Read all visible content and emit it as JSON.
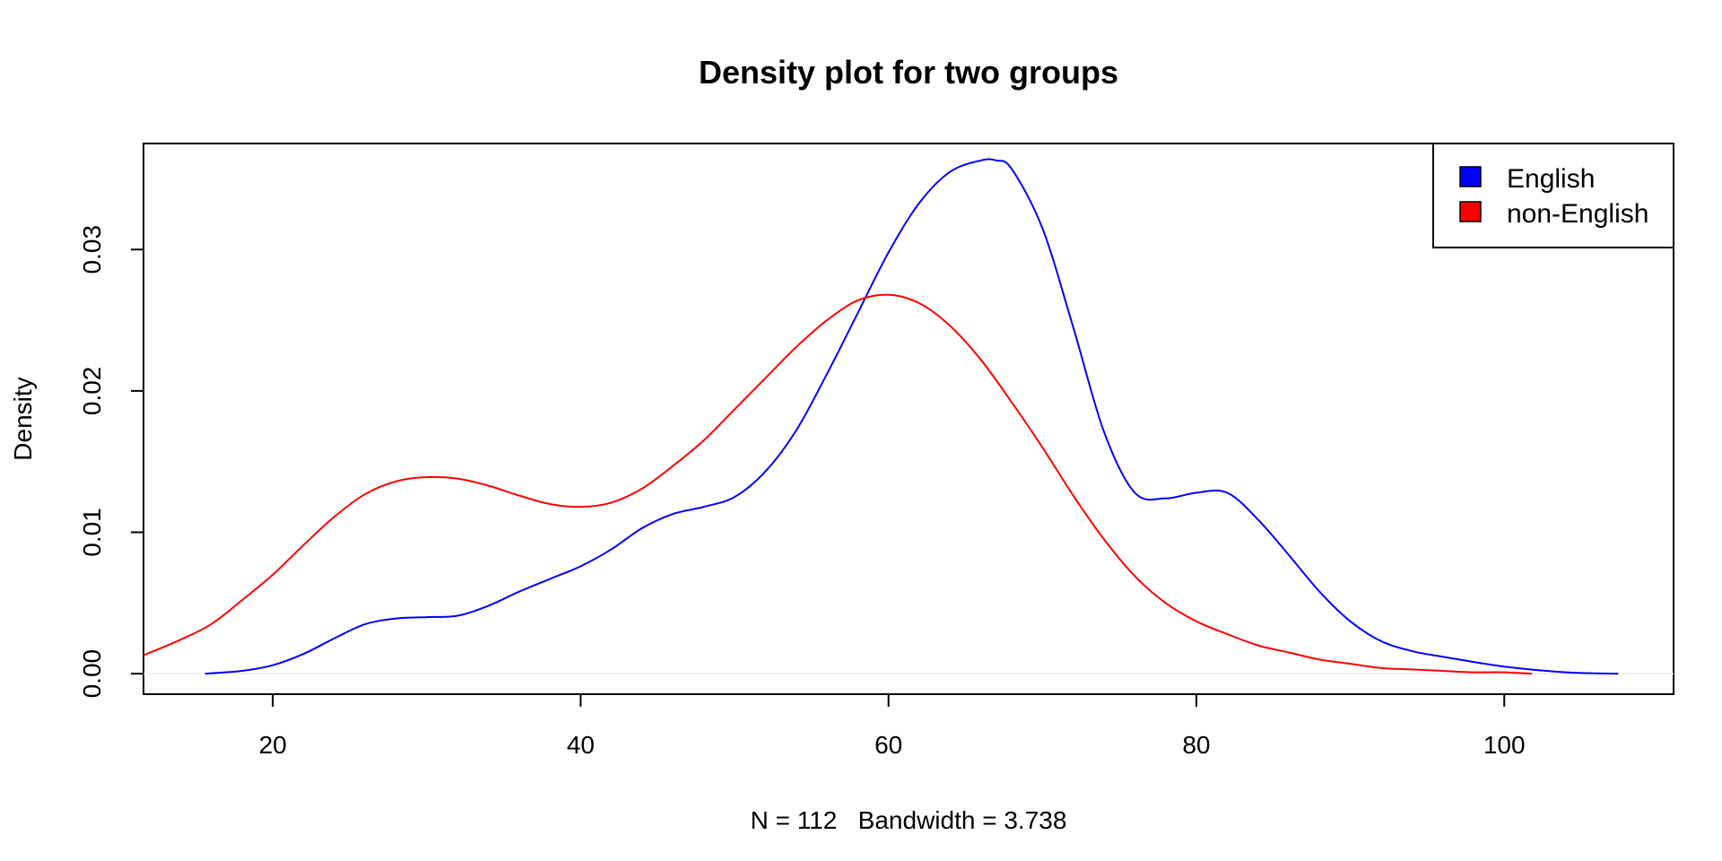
{
  "chart_data": {
    "type": "line",
    "title": "Density plot for two groups",
    "xlabel": "N = 112   Bandwidth = 3.738",
    "ylabel": "Density",
    "xlim": [
      11.6,
      111
    ],
    "ylim": [
      -0.00145,
      0.0375
    ],
    "xticks": [
      20,
      40,
      60,
      80,
      100
    ],
    "yticks": [
      0.0,
      0.01,
      0.02,
      0.03
    ],
    "xtick_labels": [
      "20",
      "40",
      "60",
      "80",
      "100"
    ],
    "ytick_labels": [
      "0.00",
      "0.01",
      "0.02",
      "0.03"
    ],
    "grid": false,
    "legend_position": "top-right",
    "baseline": 0,
    "series": [
      {
        "name": "English",
        "color": "#0000ff",
        "x": [
          15.6,
          18,
          20,
          22,
          24,
          26,
          28,
          30,
          32,
          34,
          36,
          38,
          40,
          42,
          44,
          46,
          48,
          50,
          52,
          54,
          56,
          58,
          60,
          62,
          64,
          66,
          67,
          68,
          70,
          72,
          74,
          76,
          78,
          80,
          82,
          84,
          86,
          88,
          90,
          92,
          94,
          96,
          100,
          104,
          107.4
        ],
        "values": [
          0.0,
          0.0002,
          0.0006,
          0.0014,
          0.0025,
          0.0035,
          0.0039,
          0.004,
          0.0041,
          0.0048,
          0.0058,
          0.0067,
          0.0076,
          0.0088,
          0.0103,
          0.0113,
          0.0118,
          0.0125,
          0.0143,
          0.0172,
          0.0212,
          0.0255,
          0.0298,
          0.0333,
          0.0355,
          0.0363,
          0.0363,
          0.0357,
          0.0315,
          0.0245,
          0.0171,
          0.0128,
          0.0124,
          0.0128,
          0.0128,
          0.0109,
          0.0084,
          0.0058,
          0.0037,
          0.0023,
          0.0016,
          0.0012,
          0.0005,
          0.0001,
          0.0
        ]
      },
      {
        "name": "non-English",
        "color": "#ff0000",
        "x": [
          11.6,
          14,
          16,
          18,
          20,
          22,
          24,
          26,
          28,
          30,
          32,
          34,
          36,
          38,
          40,
          42,
          44,
          46,
          48,
          50,
          52,
          54,
          56,
          58,
          60,
          62,
          64,
          66,
          68,
          70,
          72,
          74,
          76,
          78,
          80,
          82,
          84,
          86,
          88,
          90,
          92,
          94,
          96,
          98,
          100,
          101.8
        ],
        "values": [
          0.0013,
          0.0024,
          0.0035,
          0.0052,
          0.007,
          0.0091,
          0.0111,
          0.0127,
          0.0136,
          0.0139,
          0.0138,
          0.0133,
          0.0126,
          0.012,
          0.0118,
          0.0121,
          0.0131,
          0.0147,
          0.0165,
          0.0187,
          0.0209,
          0.0231,
          0.025,
          0.0264,
          0.0268,
          0.0262,
          0.0246,
          0.0222,
          0.0192,
          0.016,
          0.0126,
          0.0095,
          0.0069,
          0.005,
          0.0037,
          0.0028,
          0.002,
          0.0015,
          0.001,
          0.0007,
          0.0004,
          0.0003,
          0.0002,
          0.0001,
          0.0001,
          0.0
        ]
      }
    ]
  }
}
